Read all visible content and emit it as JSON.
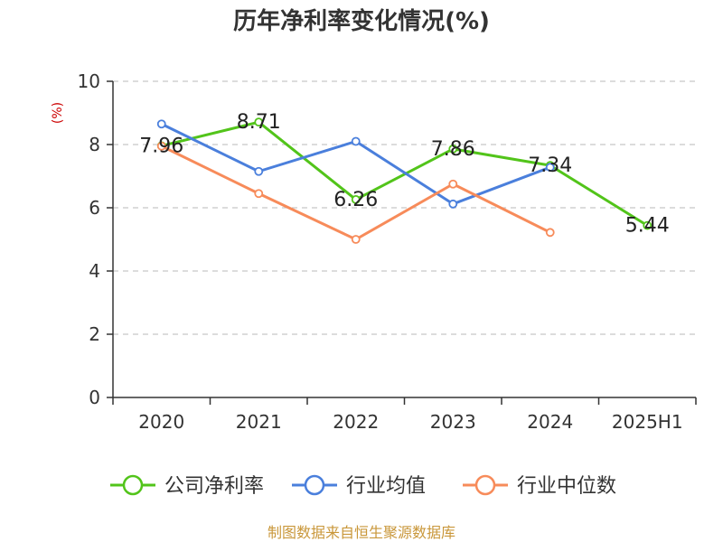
{
  "chart_data": {
    "type": "line",
    "title": "历年净利率变化情况(%)",
    "ylabel": "(%)",
    "categories": [
      "2020",
      "2021",
      "2022",
      "2023",
      "2024",
      "2025H1"
    ],
    "ylim": [
      0,
      10
    ],
    "yticks": [
      0,
      2,
      4,
      6,
      8,
      10
    ],
    "grid": true,
    "legend_position": "bottom",
    "series": [
      {
        "name": "公司净利率",
        "color": "#52c41a",
        "values": [
          7.96,
          8.71,
          6.26,
          7.86,
          7.34,
          5.44
        ],
        "labels": true
      },
      {
        "name": "行业均值",
        "color": "#4a7fdc",
        "values": [
          8.65,
          7.15,
          8.1,
          6.12,
          7.28,
          null
        ],
        "labels": false
      },
      {
        "name": "行业中位数",
        "color": "#f78b5a",
        "values": [
          7.95,
          6.45,
          5.0,
          6.75,
          5.22,
          null
        ],
        "labels": false
      }
    ],
    "source": "制图数据来自恒生聚源数据库"
  }
}
